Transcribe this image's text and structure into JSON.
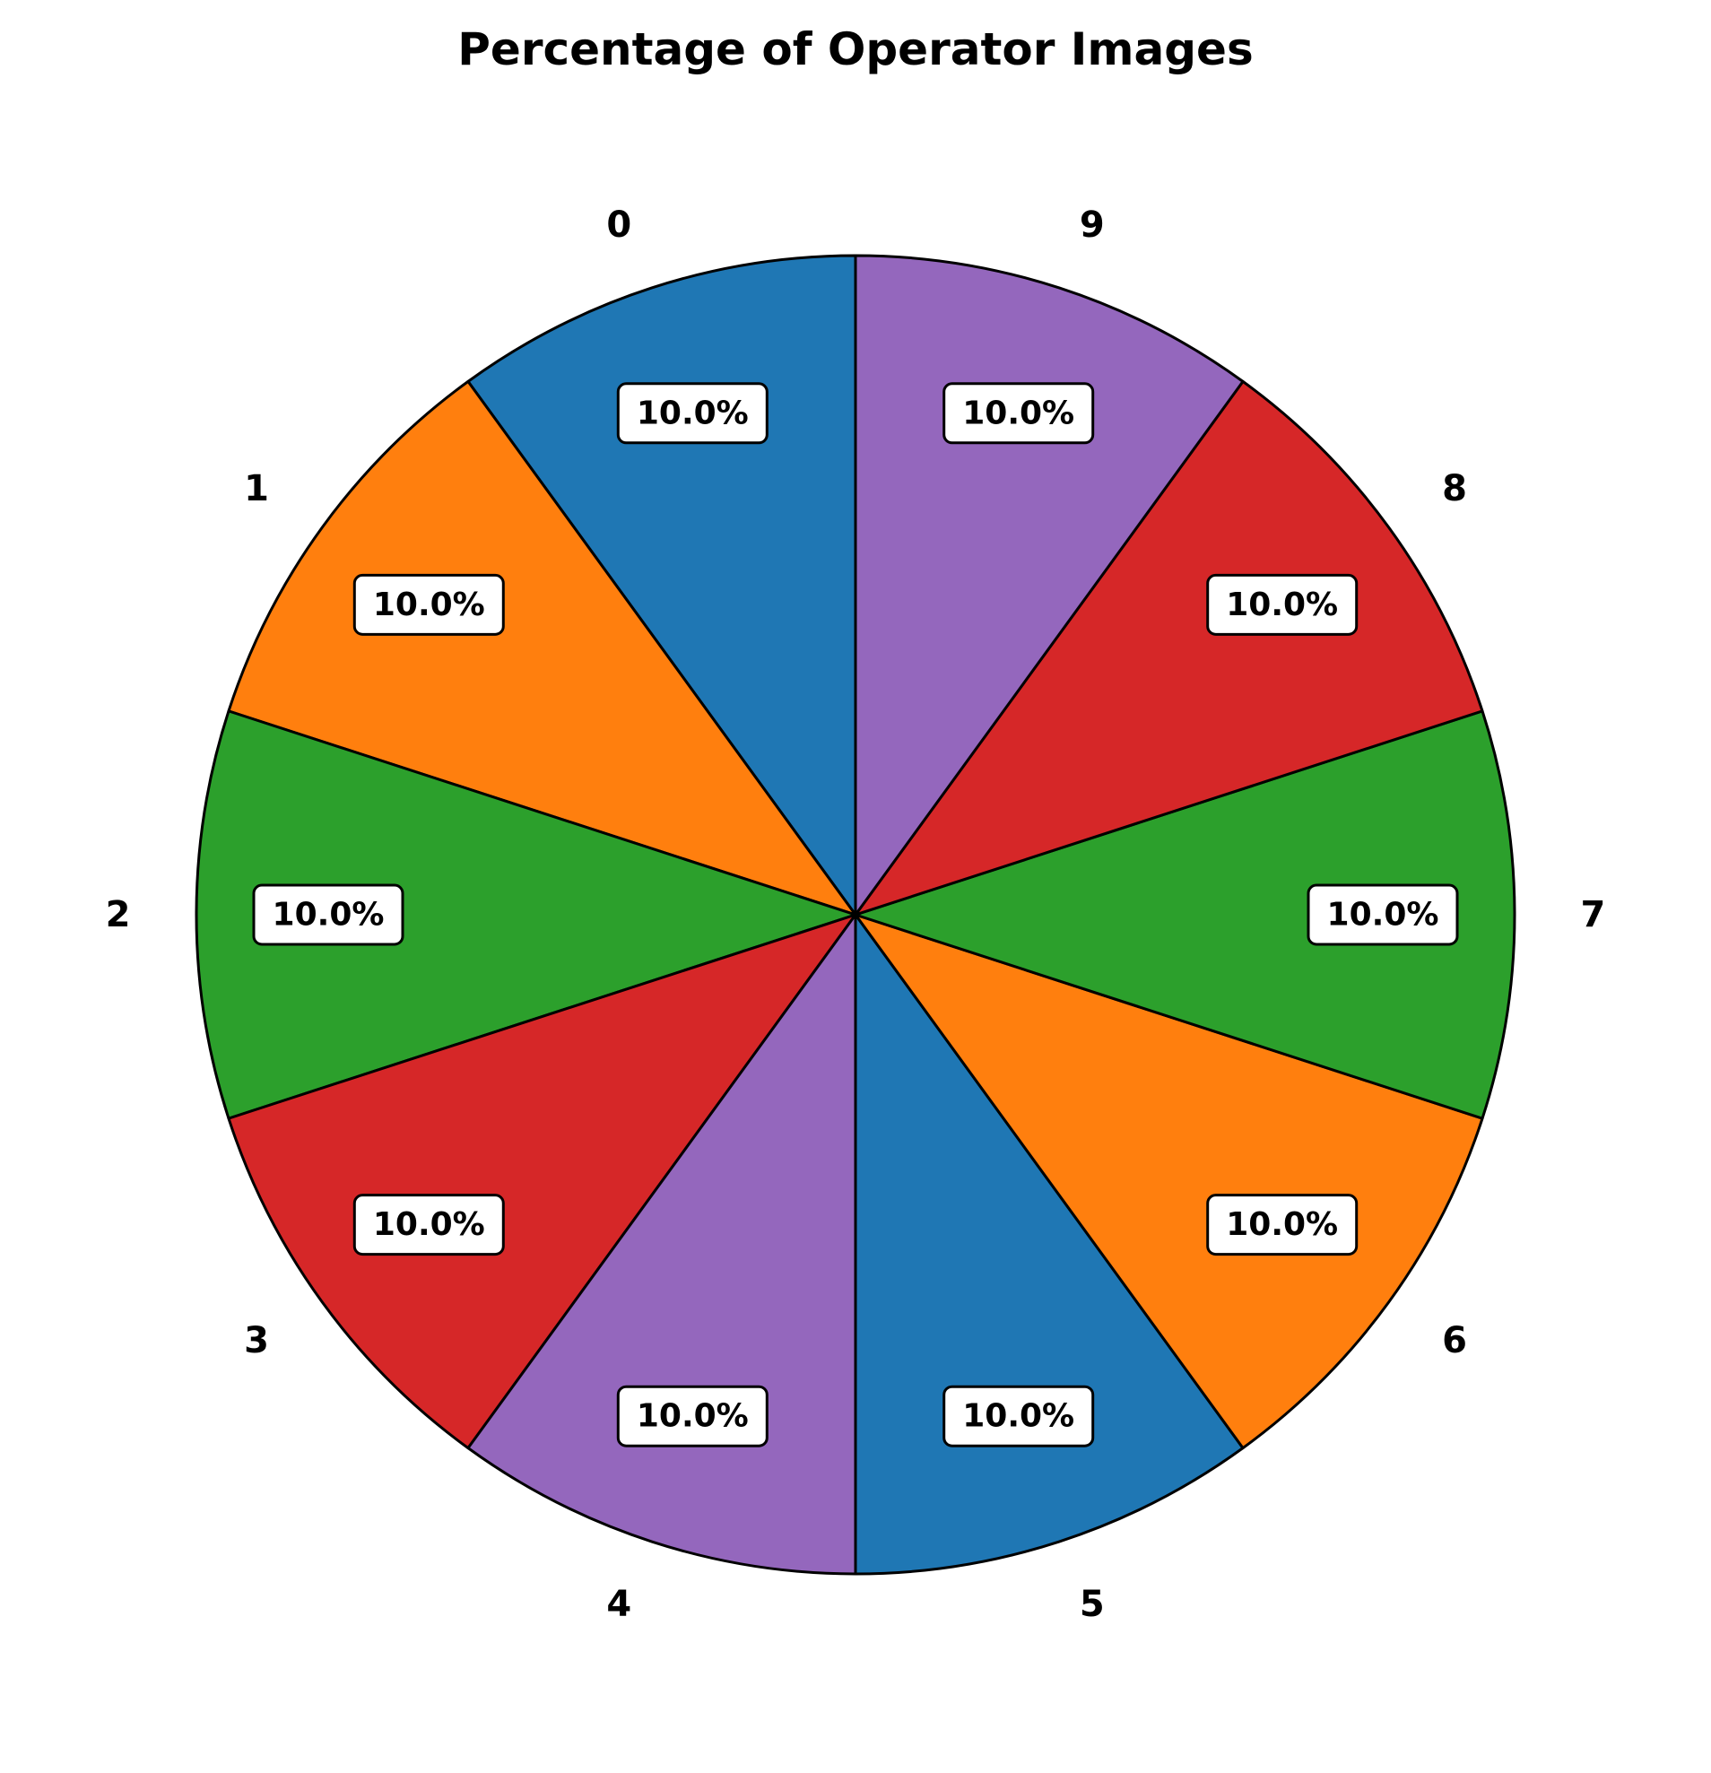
{
  "chart_data": {
    "type": "pie",
    "title": "Percentage of Operator Images",
    "categories": [
      "0",
      "1",
      "2",
      "3",
      "4",
      "5",
      "6",
      "7",
      "8",
      "9"
    ],
    "values": [
      10,
      10,
      10,
      10,
      10,
      10,
      10,
      10,
      10,
      10
    ],
    "percent_labels": [
      "10.0%",
      "10.0%",
      "10.0%",
      "10.0%",
      "10.0%",
      "10.0%",
      "10.0%",
      "10.0%",
      "10.0%",
      "10.0%"
    ],
    "colors": [
      "#1f77b4",
      "#ff7f0e",
      "#2ca02c",
      "#d62728",
      "#9467bd",
      "#1f77b4",
      "#ff7f0e",
      "#2ca02c",
      "#d62728",
      "#9467bd"
    ],
    "start_angle_deg": 90,
    "direction": "counterclockwise",
    "legend": "none"
  }
}
